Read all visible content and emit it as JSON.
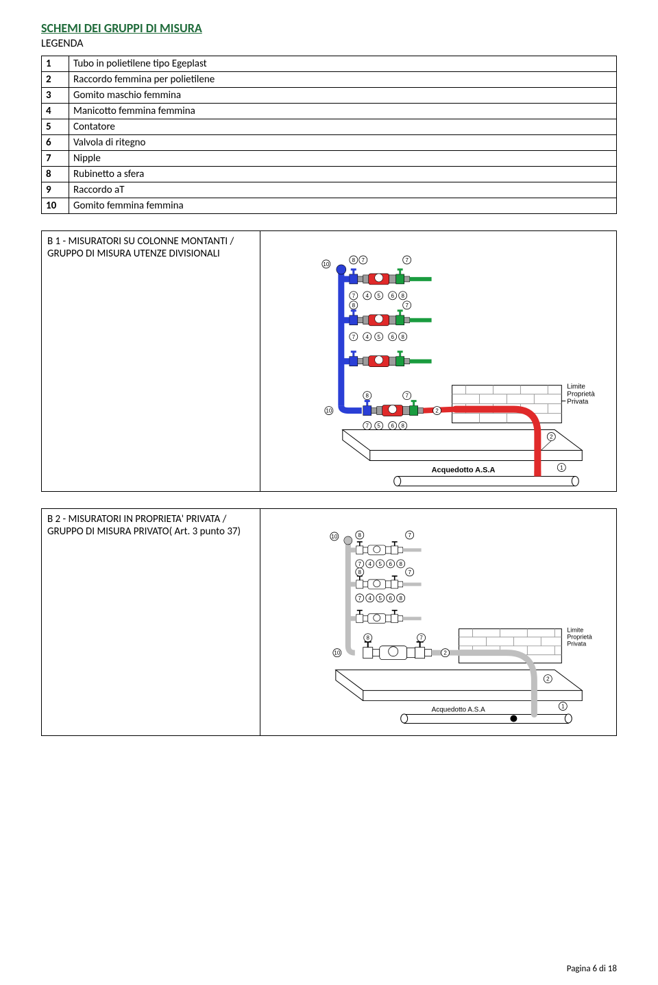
{
  "page": {
    "title": "SCHEMI DEI GRUPPI DI MISURA",
    "subtitle": "LEGENDA",
    "footer": "Pagina 6 di 18"
  },
  "legend": {
    "rows": [
      {
        "n": "1",
        "txt": "Tubo in polietilene tipo Egeplast"
      },
      {
        "n": "2",
        "txt": "Raccordo femmina per polietilene"
      },
      {
        "n": "3",
        "txt": "Gomito maschio femmina"
      },
      {
        "n": "4",
        "txt": "Manicotto femmina femmina"
      },
      {
        "n": "5",
        "txt": "Contatore"
      },
      {
        "n": "6",
        "txt": "Valvola di ritegno"
      },
      {
        "n": "7",
        "txt": "Nipple"
      },
      {
        "n": "8",
        "txt": "Rubinetto a sfera"
      },
      {
        "n": "9",
        "txt": "Raccordo aT"
      },
      {
        "n": "10",
        "txt": "Gomito femmina femmina"
      }
    ]
  },
  "section_b1": {
    "caption": "B 1 - MISURATORI SU COLONNE MONTANTI / GRUPPO DI MISURA UTENZE DIVISIONALI",
    "labels": {
      "limite": "Limite\nProprietà\nPrivata",
      "acq": "Acquedotto A.S.A"
    },
    "colors": {
      "blue": "#2a3fd6",
      "red": "#e02a2a",
      "green": "#1a9c3f",
      "gray": "#9d9d9d",
      "black": "#000000",
      "brick": "#b3b3b3",
      "text": "#000000"
    },
    "top_callouts": [
      "8",
      "7",
      "7",
      "8",
      "7",
      "8",
      "4",
      "5",
      "6",
      "8",
      "7"
    ],
    "bottom_callouts": [
      "10",
      "2",
      "7",
      "1"
    ]
  },
  "section_b2": {
    "caption": "B 2 - MISURATORI IN PROPRIETA' PRIVATA / GRUPPO DI MISURA PRIVATO( Art. 3 punto 37)",
    "labels": {
      "limite": "Limite\nProprietà\nPrivata",
      "acq": "Acquedotto A.S.A"
    },
    "colors": {
      "blue": "#2a3fd6",
      "red": "#e02a2a",
      "green": "#1a9c3f",
      "gray": "#9d9d9d",
      "black": "#000000",
      "text": "#000000"
    },
    "callouts": [
      "10",
      "8",
      "7",
      "7",
      "8",
      "4",
      "5",
      "6",
      "8",
      "7",
      "2",
      "1"
    ]
  }
}
